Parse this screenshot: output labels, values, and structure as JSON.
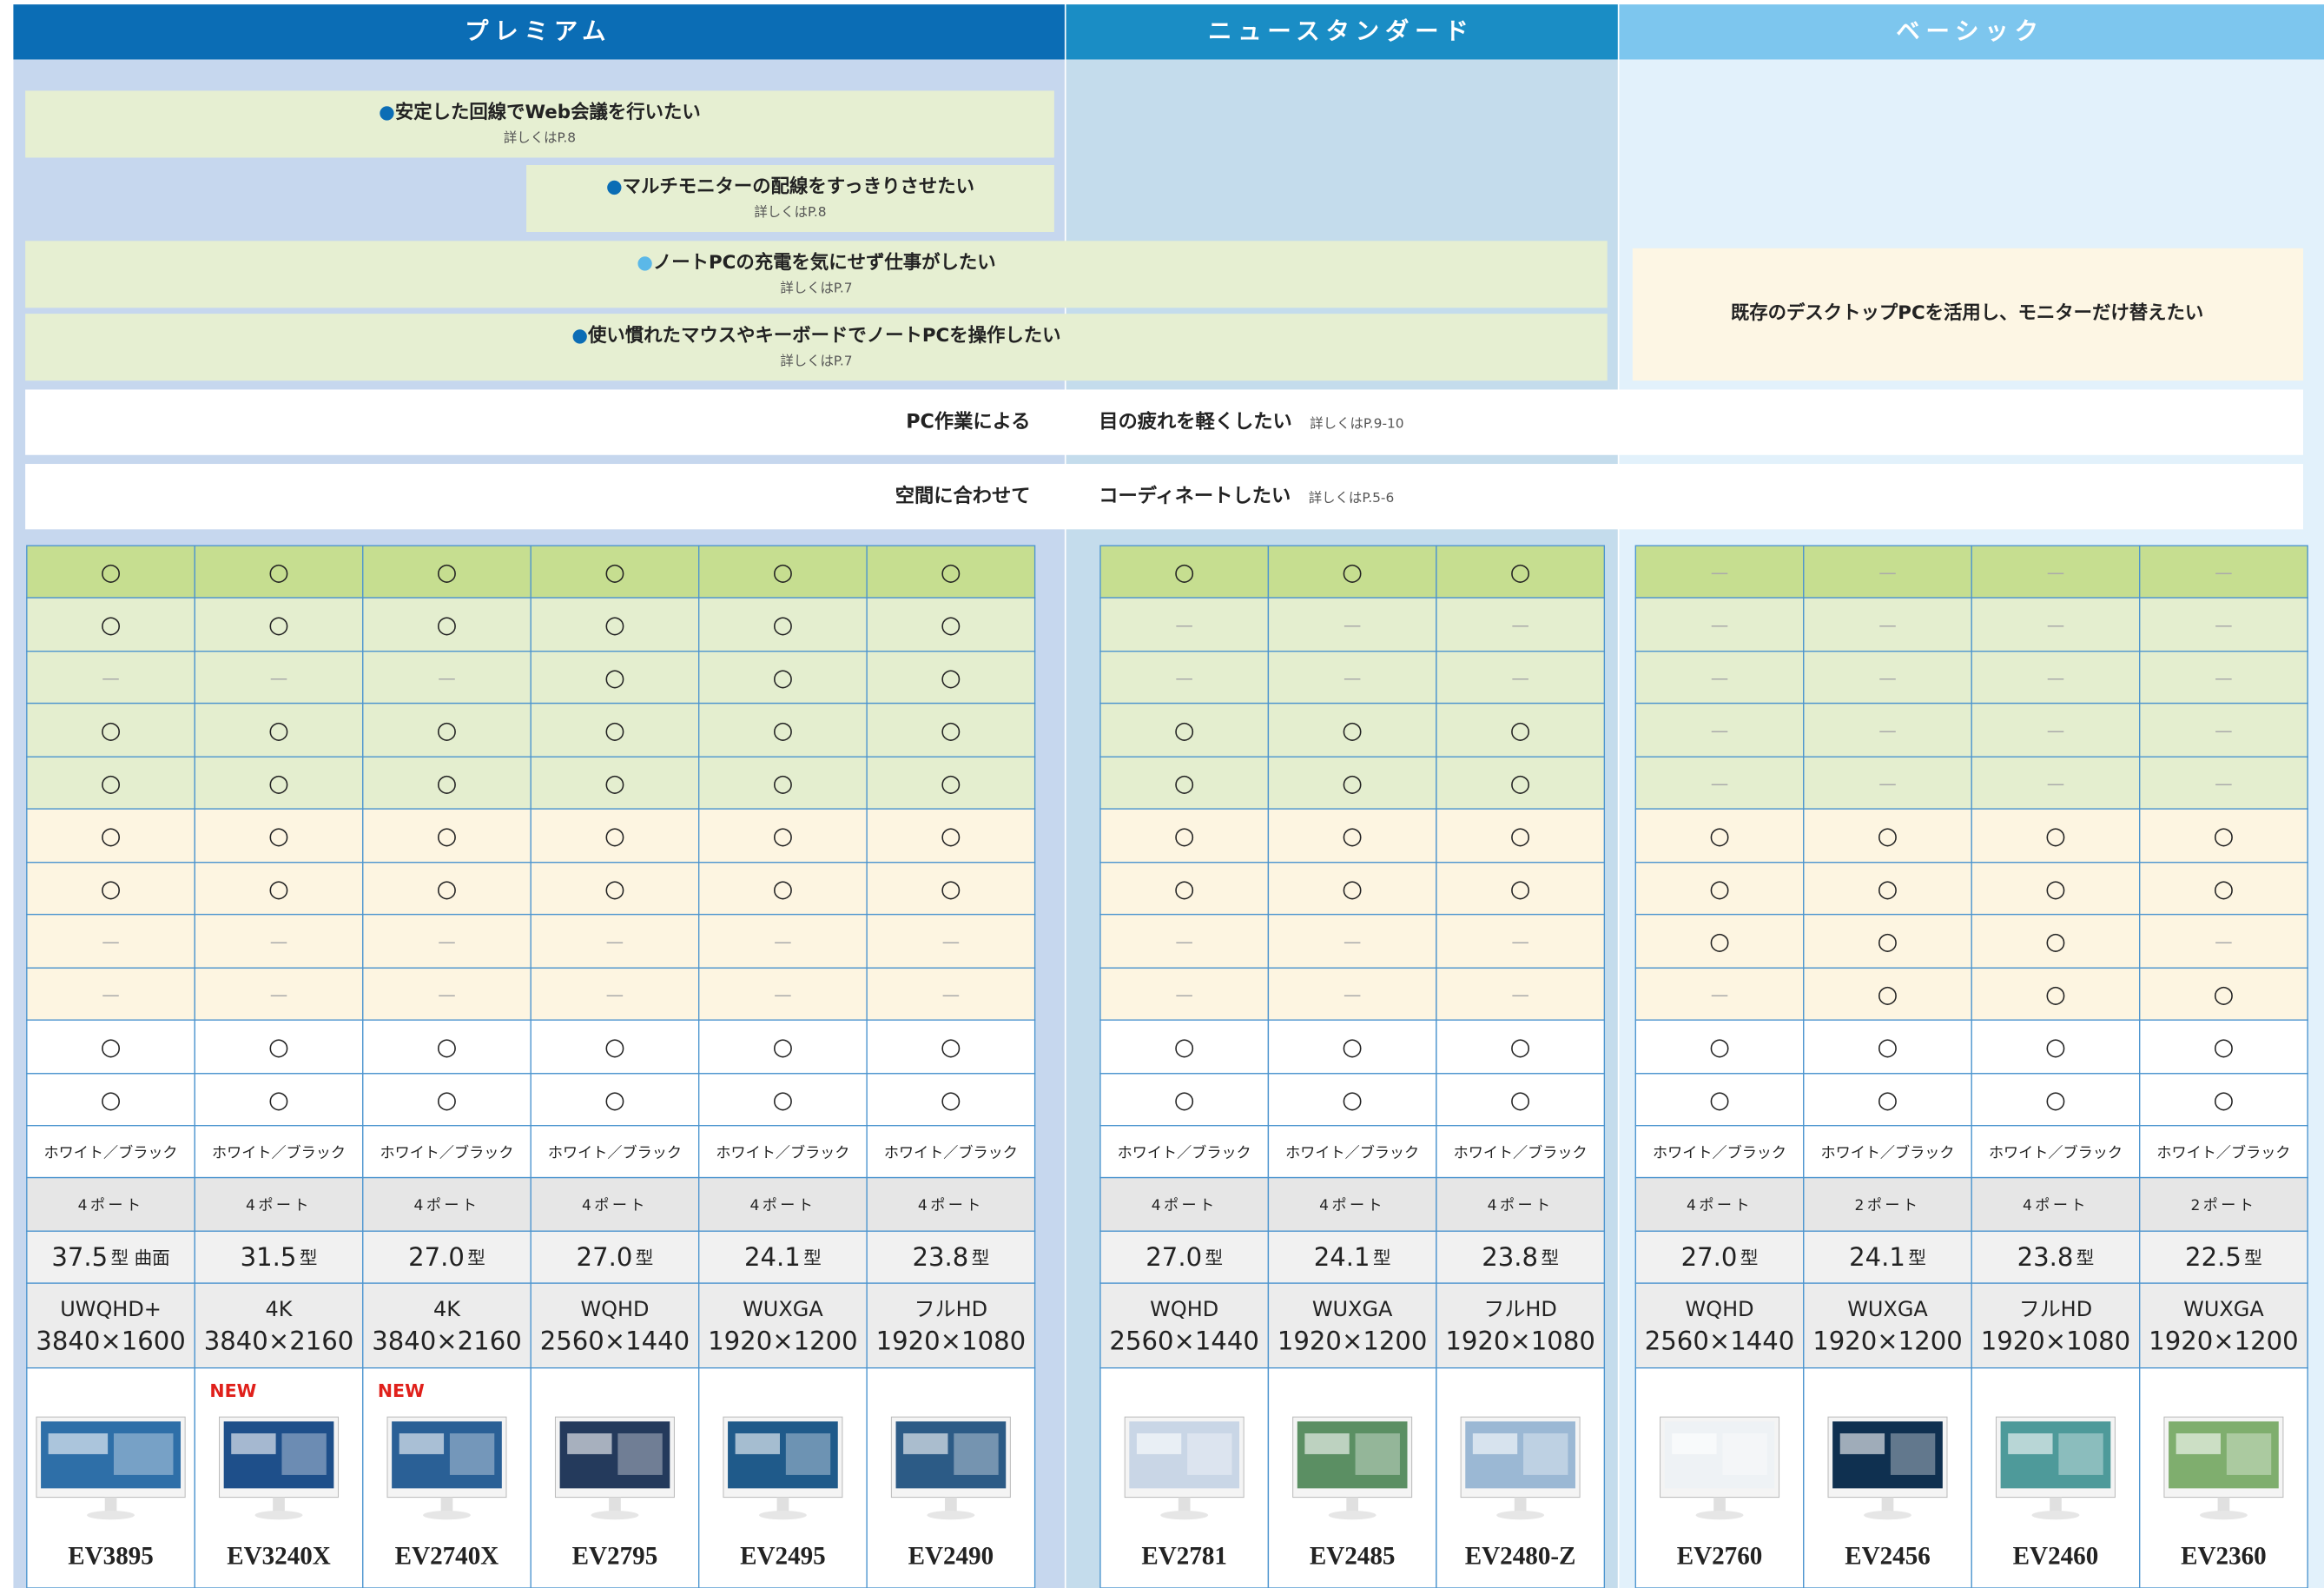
{
  "header": {
    "groups": [
      "プレミアム",
      "ニュースタンダード",
      "ベーシック"
    ]
  },
  "needs": [
    {
      "text": "安定した回線でWeb会議を行いたい",
      "ref": "詳しくはP.8"
    },
    {
      "text": "マルチモニターの配線をすっきりさせたい",
      "ref": "詳しくはP.8"
    },
    {
      "text": "ノートPCの充電を気にせず仕事がしたい",
      "ref": "詳しくはP.7"
    },
    {
      "text": "使い慣れたマウスやキーボードでノートPCを操作したい",
      "ref": "詳しくはP.7"
    }
  ],
  "basic_need": "既存のデスクトップPCを活用し、モニターだけ替えたい",
  "wide_rows": [
    {
      "lead": "PC作業による",
      "text": "目の疲れを軽くしたい",
      "ref": "詳しくはP.9-10"
    },
    {
      "lead": "空間に合わせて",
      "text": "コーディネートしたい",
      "ref": "詳しくはP.5-6"
    }
  ],
  "table": {
    "features": [
      [
        "○",
        "○",
        "○",
        "○",
        "○",
        "○",
        "○",
        "○",
        "○",
        "—",
        "—",
        "—",
        "—"
      ],
      [
        "○",
        "○",
        "○",
        "○",
        "○",
        "○",
        "—",
        "—",
        "—",
        "—",
        "—",
        "—",
        "—"
      ],
      [
        "—",
        "—",
        "—",
        "○",
        "○",
        "○",
        "—",
        "—",
        "—",
        "—",
        "—",
        "—",
        "—"
      ],
      [
        "○",
        "○",
        "○",
        "○",
        "○",
        "○",
        "○",
        "○",
        "○",
        "—",
        "—",
        "—",
        "—"
      ],
      [
        "○",
        "○",
        "○",
        "○",
        "○",
        "○",
        "○",
        "○",
        "○",
        "—",
        "—",
        "—",
        "—"
      ],
      [
        "○",
        "○",
        "○",
        "○",
        "○",
        "○",
        "○",
        "○",
        "○",
        "○",
        "○",
        "○",
        "○"
      ],
      [
        "○",
        "○",
        "○",
        "○",
        "○",
        "○",
        "○",
        "○",
        "○",
        "○",
        "○",
        "○",
        "○"
      ],
      [
        "—",
        "—",
        "—",
        "—",
        "—",
        "—",
        "—",
        "—",
        "—",
        "○",
        "○",
        "○",
        "—"
      ],
      [
        "—",
        "—",
        "—",
        "—",
        "—",
        "—",
        "—",
        "—",
        "—",
        "—",
        "○",
        "○",
        "○"
      ],
      [
        "○",
        "○",
        "○",
        "○",
        "○",
        "○",
        "○",
        "○",
        "○",
        "○",
        "○",
        "○",
        "○"
      ],
      [
        "○",
        "○",
        "○",
        "○",
        "○",
        "○",
        "○",
        "○",
        "○",
        "○",
        "○",
        "○",
        "○"
      ]
    ],
    "colors": [
      "ホワイト／ブラック",
      "ホワイト／ブラック",
      "ホワイト／ブラック",
      "ホワイト／ブラック",
      "ホワイト／ブラック",
      "ホワイト／ブラック",
      "ホワイト／ブラック",
      "ホワイト／ブラック",
      "ホワイト／ブラック",
      "ホワイト／ブラック",
      "ホワイト／ブラック",
      "ホワイト／ブラック",
      "ホワイト／ブラック"
    ],
    "ports": [
      "4ポート",
      "4ポート",
      "4ポート",
      "4ポート",
      "4ポート",
      "4ポート",
      "4ポート",
      "4ポート",
      "4ポート",
      "4ポート",
      "2ポート",
      "4ポート",
      "2ポート"
    ],
    "sizes": [
      {
        "num": "37.5",
        "unit": "型 曲面"
      },
      {
        "num": "31.5",
        "unit": "型"
      },
      {
        "num": "27.0",
        "unit": "型"
      },
      {
        "num": "27.0",
        "unit": "型"
      },
      {
        "num": "24.1",
        "unit": "型"
      },
      {
        "num": "23.8",
        "unit": "型"
      },
      {
        "num": "27.0",
        "unit": "型"
      },
      {
        "num": "24.1",
        "unit": "型"
      },
      {
        "num": "23.8",
        "unit": "型"
      },
      {
        "num": "27.0",
        "unit": "型"
      },
      {
        "num": "24.1",
        "unit": "型"
      },
      {
        "num": "23.8",
        "unit": "型"
      },
      {
        "num": "22.5",
        "unit": "型"
      }
    ],
    "resolutions": [
      {
        "name": "UWQHD+",
        "pixels": "3840×1600"
      },
      {
        "name": "4K",
        "pixels": "3840×2160"
      },
      {
        "name": "4K",
        "pixels": "3840×2160"
      },
      {
        "name": "WQHD",
        "pixels": "2560×1440"
      },
      {
        "name": "WUXGA",
        "pixels": "1920×1200"
      },
      {
        "name": "フルHD",
        "pixels": "1920×1080"
      },
      {
        "name": "WQHD",
        "pixels": "2560×1440"
      },
      {
        "name": "WUXGA",
        "pixels": "1920×1200"
      },
      {
        "name": "フルHD",
        "pixels": "1920×1080"
      },
      {
        "name": "WQHD",
        "pixels": "2560×1440"
      },
      {
        "name": "WUXGA",
        "pixels": "1920×1200"
      },
      {
        "name": "フルHD",
        "pixels": "1920×1080"
      },
      {
        "name": "WUXGA",
        "pixels": "1920×1200"
      }
    ],
    "badges": [
      null,
      "NEW",
      "NEW",
      null,
      null,
      null,
      null,
      null,
      null,
      null,
      null,
      null,
      null
    ],
    "models": [
      "EV3895",
      "EV3240X",
      "EV2740X",
      "EV2795",
      "EV2495",
      "EV2490",
      "EV2781",
      "EV2485",
      "EV2480-Z",
      "EV2760",
      "EV2456",
      "EV2460",
      "EV2360"
    ]
  }
}
